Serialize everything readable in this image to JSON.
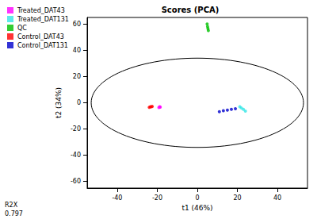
{
  "chart_data": {
    "type": "scatter",
    "title": "Scores (PCA)",
    "x_label": "t1 (46%)",
    "y_label": "t2 (34%)",
    "xlim": [
      -55,
      55
    ],
    "ylim": [
      -65,
      65
    ],
    "xticks": [
      -40,
      -20,
      0,
      20,
      40
    ],
    "yticks": [
      -60,
      -40,
      -20,
      0,
      20,
      40,
      60
    ],
    "grid": false,
    "legend": "top-left",
    "ellipse": {
      "rx": 53,
      "ry": 34
    },
    "r2x": {
      "label": "R2X",
      "value": 0.797
    },
    "series": [
      {
        "name": "Treated_DAT43",
        "color": "#ff00ff",
        "x": [
          -19.2,
          -18.8,
          -18.5
        ],
        "y": [
          -3.6,
          -3.0,
          -3.3
        ]
      },
      {
        "name": "Treated_DAT131",
        "color": "#33e6e6",
        "x": [
          21.2,
          22.0,
          23.0,
          24.0
        ],
        "y": [
          -3.0,
          -4.0,
          -5.0,
          -6.4
        ]
      },
      {
        "name": "QC",
        "color": "#00c000",
        "x": [
          4.9,
          5.1,
          5.3,
          5.5
        ],
        "y": [
          60.0,
          58.0,
          56.5,
          55.0
        ]
      },
      {
        "name": "Control_DAT43",
        "color": "#ff0000",
        "x": [
          -24.0,
          -23.5,
          -23.0,
          -22.5
        ],
        "y": [
          -3.5,
          -3.1,
          -3.0,
          -2.8
        ]
      },
      {
        "name": "Control_DAT131",
        "color": "#0000cc",
        "x": [
          11.0,
          13.0,
          15.0,
          17.0,
          19.0
        ],
        "y": [
          -6.8,
          -6.1,
          -5.6,
          -5.0,
          -4.5
        ]
      }
    ]
  }
}
